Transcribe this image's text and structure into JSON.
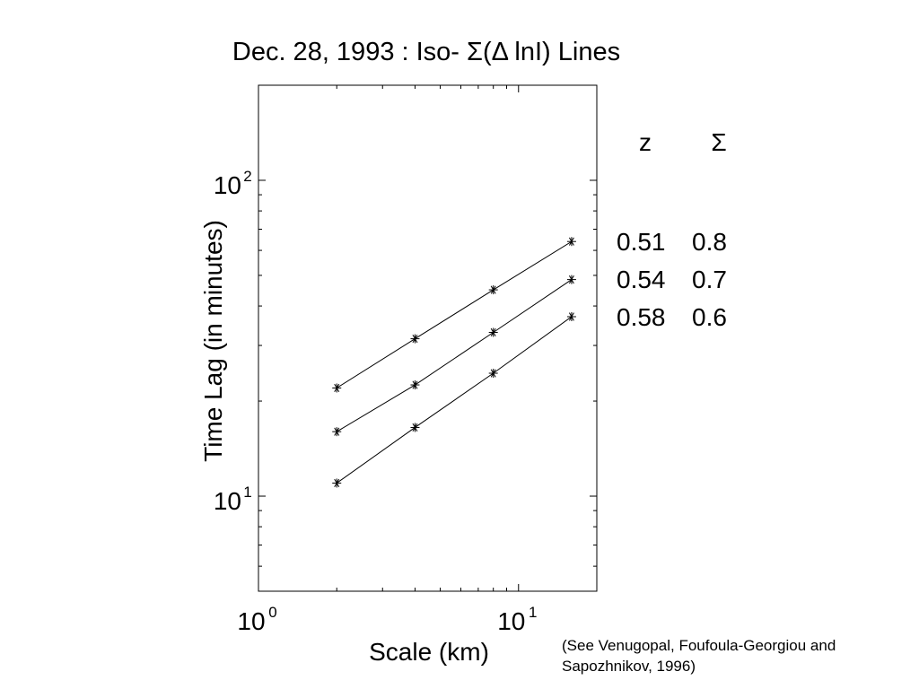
{
  "chart_data": {
    "type": "line",
    "title": "Dec. 28, 1993   :   Iso- Σ(Δ lnI) Lines",
    "xlabel": "Scale (km)",
    "ylabel": "Time Lag (in minutes)",
    "xscale": "log",
    "yscale": "log",
    "xlim": [
      1,
      20
    ],
    "ylim": [
      5,
      200
    ],
    "x_ticks": [
      {
        "base": "10",
        "exp": "0",
        "value": 1
      },
      {
        "base": "10",
        "exp": "1",
        "value": 10
      }
    ],
    "y_ticks": [
      {
        "base": "10",
        "exp": "1",
        "value": 10
      },
      {
        "base": "10",
        "exp": "2",
        "value": 100
      }
    ],
    "x": [
      2,
      4,
      8,
      16
    ],
    "series": [
      {
        "z": "0.51",
        "sigma": "0.8",
        "values": [
          22,
          31.5,
          45,
          64
        ]
      },
      {
        "z": "0.54",
        "sigma": "0.7",
        "values": [
          16,
          22.5,
          33,
          48.5
        ]
      },
      {
        "z": "0.58",
        "sigma": "0.6",
        "values": [
          11,
          16.5,
          24.5,
          37
        ]
      }
    ],
    "legend": {
      "placement": "right",
      "headers": [
        "z",
        "Σ"
      ],
      "rows": [
        [
          "0.51",
          "0.8"
        ],
        [
          "0.54",
          "0.7"
        ],
        [
          "0.58",
          "0.6"
        ]
      ]
    },
    "marker": "asterisk",
    "line_color": "#000000",
    "grid": false
  },
  "citation": "(See Venugopal, Foufoula-Georgiou and Sapozhnikov, 1996)"
}
